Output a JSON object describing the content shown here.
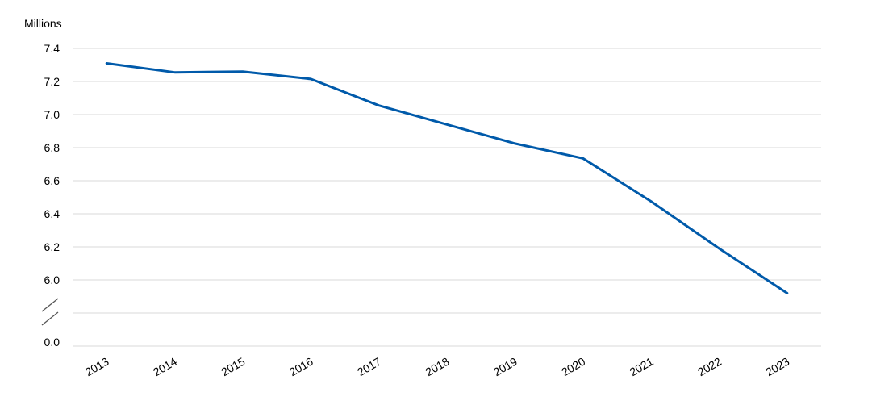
{
  "chart_data": {
    "type": "line",
    "unit_label": "Millions",
    "x": [
      "2013",
      "2014",
      "2015",
      "2016",
      "2017",
      "2018",
      "2019",
      "2020",
      "2021",
      "2022",
      "2023"
    ],
    "series": [
      {
        "values": [
          7.31,
          7.255,
          7.26,
          7.215,
          7.055,
          6.94,
          6.825,
          6.735,
          6.475,
          6.19,
          5.92
        ]
      }
    ],
    "y_ticks": [
      "7.4",
      "7.2",
      "7.0",
      "6.8",
      "6.6",
      "6.4",
      "6.2",
      "6.0",
      "0.0"
    ],
    "ylim": [
      5.8,
      7.4
    ],
    "y_axis_break": true,
    "grid": true,
    "line_color": "#005AAA",
    "grid_color": "#D9D9D9"
  }
}
